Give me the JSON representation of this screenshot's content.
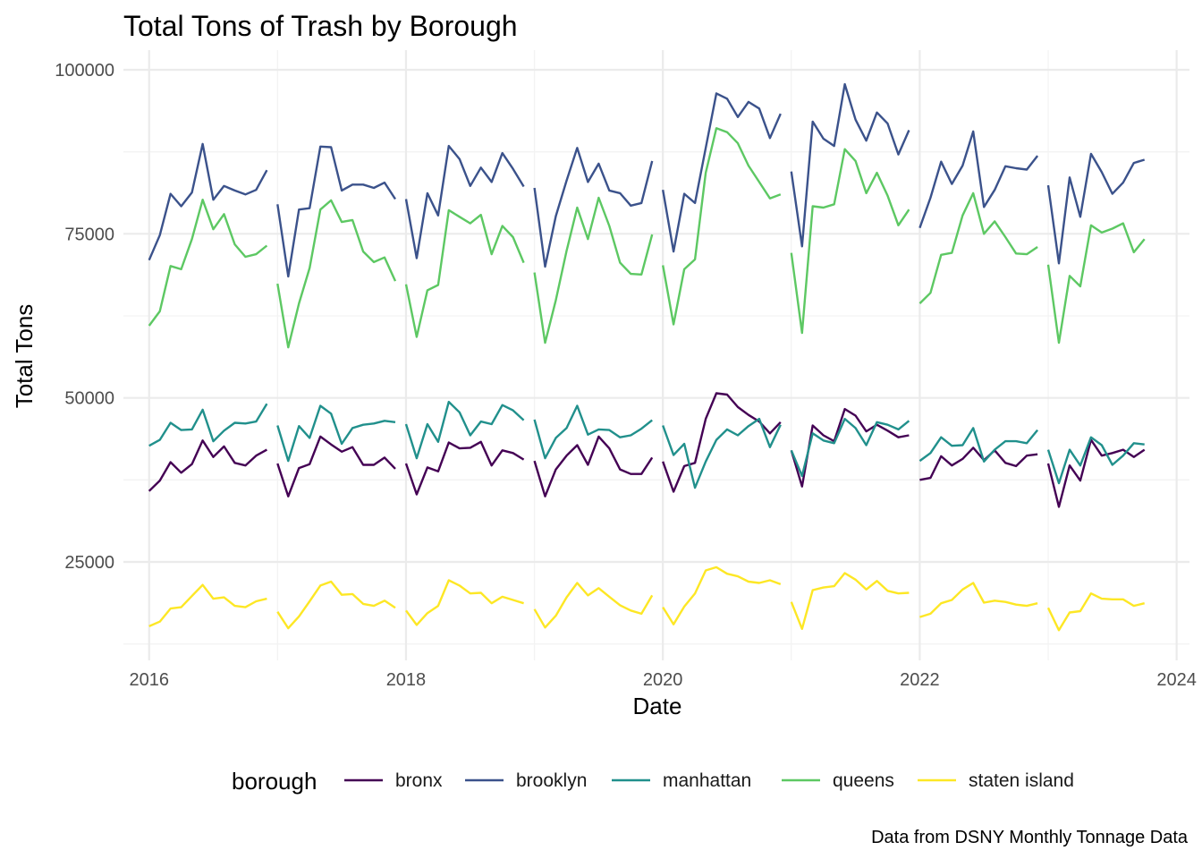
{
  "chart_data": {
    "type": "line",
    "title": "Total Tons of Trash by Borough",
    "xlabel": "Date",
    "ylabel": "Total Tons",
    "caption": "Data from DSNY Monthly Tonnage Data",
    "legend_title": "borough",
    "legend_position": "bottom",
    "grid": true,
    "xlim": [
      2015.8,
      2024.1
    ],
    "ylim": [
      10000,
      103000
    ],
    "x_ticks": [
      2016,
      2018,
      2020,
      2022,
      2024
    ],
    "x_tick_labels": [
      "2016",
      "2018",
      "2020",
      "2022",
      "2024"
    ],
    "y_ticks": [
      25000,
      50000,
      75000,
      100000
    ],
    "y_tick_labels": [
      "25000",
      "50000",
      "75000",
      "100000"
    ],
    "segments": [
      {
        "year": 2016,
        "months": 12
      },
      {
        "year": 2017,
        "months": 12
      },
      {
        "year": 2018,
        "months": 12
      },
      {
        "year": 2019,
        "months": 12
      },
      {
        "year": 2020,
        "months": 12
      },
      {
        "year": 2021,
        "months": 12
      },
      {
        "year": 2022,
        "months": 12
      },
      {
        "year": 2023,
        "months": 10
      }
    ],
    "series": [
      {
        "name": "bronx",
        "color": "#440154",
        "values": [
          35800,
          37400,
          40200,
          38600,
          39900,
          43500,
          41000,
          42600,
          40100,
          39700,
          41200,
          42100,
          40000,
          35000,
          39300,
          39900,
          44100,
          42900,
          41800,
          42500,
          39800,
          39800,
          40900,
          39200,
          40000,
          35300,
          39400,
          38800,
          43200,
          42300,
          42400,
          43300,
          39700,
          42000,
          41600,
          40600,
          40400,
          35000,
          39100,
          41200,
          42800,
          39800,
          44100,
          42300,
          39100,
          38400,
          38400,
          40900,
          40300,
          35700,
          39600,
          40100,
          46800,
          50700,
          50500,
          48600,
          47400,
          46400,
          44600,
          46300,
          42000,
          36500,
          45800,
          44300,
          43400,
          48300,
          47300,
          44900,
          45900,
          45000,
          44000,
          44300,
          37500,
          37800,
          41100,
          39700,
          40700,
          42400,
          40500,
          42000,
          40100,
          39600,
          41200,
          41400,
          40000,
          33400,
          39700,
          37400,
          43600,
          41200,
          41600,
          42100,
          41000,
          42100
        ]
      },
      {
        "name": "brooklyn",
        "color": "#3b528b",
        "values": [
          71000,
          74800,
          81100,
          79200,
          81300,
          88700,
          80200,
          82300,
          81600,
          81000,
          81700,
          84700,
          79500,
          68500,
          78700,
          78900,
          88300,
          88200,
          81600,
          82500,
          82500,
          82000,
          82800,
          80300,
          80300,
          71300,
          81200,
          77800,
          88400,
          86400,
          82300,
          85100,
          82900,
          87300,
          84900,
          82200,
          82000,
          70000,
          77700,
          83100,
          88100,
          82900,
          85700,
          81600,
          81200,
          79300,
          79700,
          86100,
          81700,
          72300,
          81100,
          79700,
          88100,
          96400,
          95600,
          92800,
          95100,
          94100,
          89600,
          93300,
          84500,
          73100,
          92100,
          89500,
          88400,
          97800,
          92400,
          89200,
          93500,
          91800,
          87100,
          90800,
          75900,
          80500,
          86000,
          82600,
          85400,
          90600,
          79100,
          81700,
          85300,
          85000,
          84800,
          86900,
          82400,
          70500,
          83600,
          77600,
          87200,
          84400,
          81100,
          82800,
          85800,
          86300
        ]
      },
      {
        "name": "manhattan",
        "color": "#21908c",
        "values": [
          42700,
          43600,
          46200,
          45100,
          45200,
          48200,
          43400,
          45000,
          46200,
          46100,
          46400,
          49100,
          45800,
          40400,
          45700,
          43900,
          48800,
          47600,
          43000,
          45400,
          45900,
          46100,
          46500,
          46300,
          46000,
          40800,
          46000,
          43300,
          49400,
          47800,
          44300,
          46400,
          46000,
          48900,
          48100,
          46600,
          46700,
          40800,
          43900,
          45400,
          48800,
          44400,
          45200,
          45100,
          44000,
          44300,
          45300,
          46600,
          45800,
          41300,
          43000,
          36300,
          40300,
          43600,
          45200,
          44300,
          45700,
          46800,
          42500,
          45900,
          42000,
          38100,
          44600,
          43500,
          43100,
          46800,
          45400,
          42800,
          46300,
          45900,
          45200,
          46500,
          40400,
          41600,
          44000,
          42700,
          42800,
          45400,
          40300,
          42100,
          43400,
          43400,
          43100,
          45100,
          42100,
          37000,
          42100,
          39700,
          44000,
          42800,
          39800,
          41200,
          43100,
          42900
        ]
      },
      {
        "name": "queens",
        "color": "#5dc863",
        "values": [
          61000,
          63200,
          70100,
          69600,
          74200,
          80200,
          75700,
          78000,
          73400,
          71500,
          71900,
          73200,
          67400,
          57700,
          64400,
          69800,
          78700,
          80100,
          76800,
          77100,
          72300,
          70700,
          71400,
          67800,
          67300,
          59300,
          66400,
          67200,
          78600,
          77600,
          76600,
          77900,
          71900,
          76200,
          74500,
          70600,
          69100,
          58400,
          64900,
          72400,
          79000,
          74200,
          80500,
          76200,
          70600,
          68900,
          68800,
          74900,
          70200,
          61200,
          69600,
          71100,
          84300,
          91100,
          90500,
          88800,
          85400,
          82900,
          80400,
          81000,
          72100,
          59900,
          79200,
          79000,
          79500,
          87900,
          86100,
          81200,
          84300,
          80800,
          76300,
          78700,
          64400,
          66000,
          71800,
          72100,
          77800,
          81200,
          75000,
          76900,
          74500,
          72000,
          71900,
          73000,
          70300,
          58400,
          68600,
          67000,
          76300,
          75200,
          75800,
          76600,
          72200,
          74200
        ]
      },
      {
        "name": "staten island",
        "color": "#fde725",
        "values": [
          15200,
          15900,
          17900,
          18100,
          19800,
          21500,
          19400,
          19600,
          18300,
          18100,
          19000,
          19400,
          17400,
          14900,
          16700,
          19000,
          21400,
          22000,
          20000,
          20100,
          18600,
          18300,
          19100,
          18000,
          17600,
          15400,
          17200,
          18300,
          22200,
          21400,
          20200,
          20300,
          18700,
          19700,
          19200,
          18700,
          17800,
          15000,
          16800,
          19600,
          21800,
          19900,
          21000,
          19700,
          18400,
          17600,
          17100,
          19900,
          18100,
          15500,
          18200,
          20200,
          23700,
          24200,
          23200,
          22800,
          22000,
          21800,
          22200,
          21600,
          18900,
          14800,
          20700,
          21100,
          21300,
          23300,
          22300,
          20800,
          22100,
          20600,
          20200,
          20300,
          16600,
          17100,
          18700,
          19200,
          20800,
          21800,
          18800,
          19100,
          18900,
          18500,
          18300,
          18700,
          18000,
          14600,
          17300,
          17500,
          20200,
          19400,
          19300,
          19300,
          18300,
          18700
        ]
      }
    ]
  }
}
